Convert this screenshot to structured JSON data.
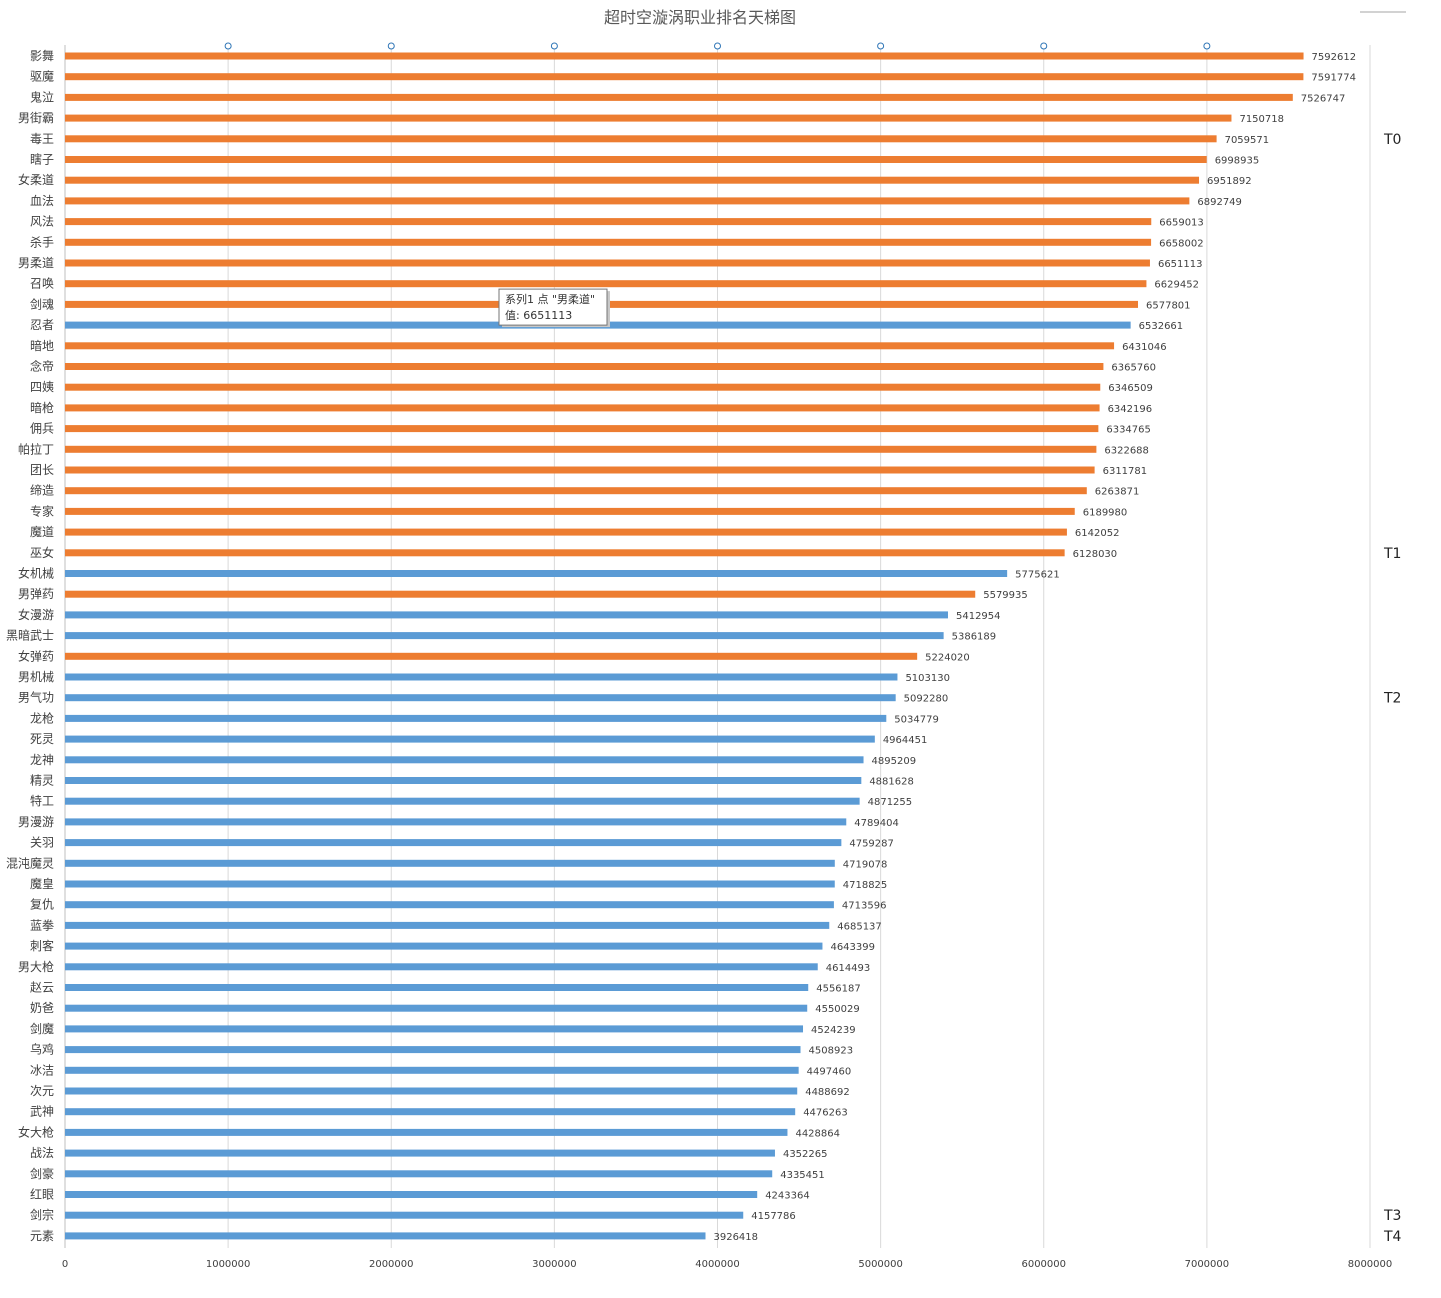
{
  "chart_data": {
    "type": "bar",
    "orientation": "horizontal",
    "title": "超时空漩涡职业排名天梯图",
    "xlim": [
      0,
      8000000
    ],
    "x_ticks": [
      0,
      1000000,
      2000000,
      3000000,
      4000000,
      5000000,
      6000000,
      7000000,
      8000000
    ],
    "x_tick_labels": [
      "0",
      "1000000",
      "2000000",
      "3000000",
      "4000000",
      "5000000",
      "6000000",
      "7000000",
      "8000000"
    ],
    "grid": "vertical",
    "colors": {
      "orange": "#ED7D31",
      "blue": "#5B9BD5",
      "grid": "#d9d9d9",
      "axis": "#bfbfbf",
      "circle": "#2E75B6"
    },
    "categories": [
      "影舞",
      "驱魔",
      "鬼泣",
      "男街霸",
      "毒王",
      "瞎子",
      "女柔道",
      "血法",
      "风法",
      "杀手",
      "男柔道",
      "召唤",
      "剑魂",
      "忍者",
      "暗地",
      "念帝",
      "四姨",
      "暗枪",
      "佣兵",
      "帕拉丁",
      "团长",
      "缔造",
      "专家",
      "魔道",
      "巫女",
      "女机械",
      "男弹药",
      "女漫游",
      "黑暗武士",
      "女弹药",
      "男机械",
      "男气功",
      "龙枪",
      "死灵",
      "龙神",
      "精灵",
      "特工",
      "男漫游",
      "关羽",
      "混沌魔灵",
      "魔皇",
      "复仇",
      "蓝拳",
      "刺客",
      "男大枪",
      "赵云",
      "奶爸",
      "剑魔",
      "乌鸡",
      "冰洁",
      "次元",
      "武神",
      "女大枪",
      "战法",
      "剑豪",
      "红眼",
      "剑宗",
      "元素"
    ],
    "values": [
      7592612,
      7591774,
      7526747,
      7150718,
      7059571,
      6998935,
      6951892,
      6892749,
      6659013,
      6658002,
      6651113,
      6629452,
      6577801,
      6532661,
      6431046,
      6365760,
      6346509,
      6342196,
      6334765,
      6322688,
      6311781,
      6263871,
      6189980,
      6142052,
      6128030,
      5775621,
      5579935,
      5412954,
      5386189,
      5224020,
      5103130,
      5092280,
      5034779,
      4964451,
      4895209,
      4881628,
      4871255,
      4789404,
      4759287,
      4719078,
      4718825,
      4713596,
      4685137,
      4643399,
      4614493,
      4556187,
      4550029,
      4524239,
      4508923,
      4497460,
      4488692,
      4476263,
      4428864,
      4352265,
      4335451,
      4243364,
      4157786,
      3926418
    ],
    "bar_colors": [
      "orange",
      "orange",
      "orange",
      "orange",
      "orange",
      "orange",
      "orange",
      "orange",
      "orange",
      "orange",
      "orange",
      "orange",
      "orange",
      "blue",
      "orange",
      "orange",
      "orange",
      "orange",
      "orange",
      "orange",
      "orange",
      "orange",
      "orange",
      "orange",
      "orange",
      "blue",
      "orange",
      "blue",
      "blue",
      "orange",
      "blue",
      "blue",
      "blue",
      "blue",
      "blue",
      "blue",
      "blue",
      "blue",
      "blue",
      "blue",
      "blue",
      "blue",
      "blue",
      "blue",
      "blue",
      "blue",
      "blue",
      "blue",
      "blue",
      "blue",
      "blue",
      "blue",
      "blue",
      "blue",
      "blue",
      "blue",
      "blue",
      "blue"
    ],
    "top_markers": [
      1000000,
      2000000,
      3000000,
      4000000,
      5000000,
      6000000,
      7000000
    ],
    "tiers": [
      {
        "label": "T0",
        "row": 4
      },
      {
        "label": "T1",
        "row": 24
      },
      {
        "label": "T2",
        "row": 31
      },
      {
        "label": "T3",
        "row": 56
      },
      {
        "label": "T4",
        "row": 57
      }
    ],
    "tooltip": {
      "row": 13,
      "line1": "系列1 点 \"男柔道\"",
      "line2": "值: 6651113"
    }
  }
}
